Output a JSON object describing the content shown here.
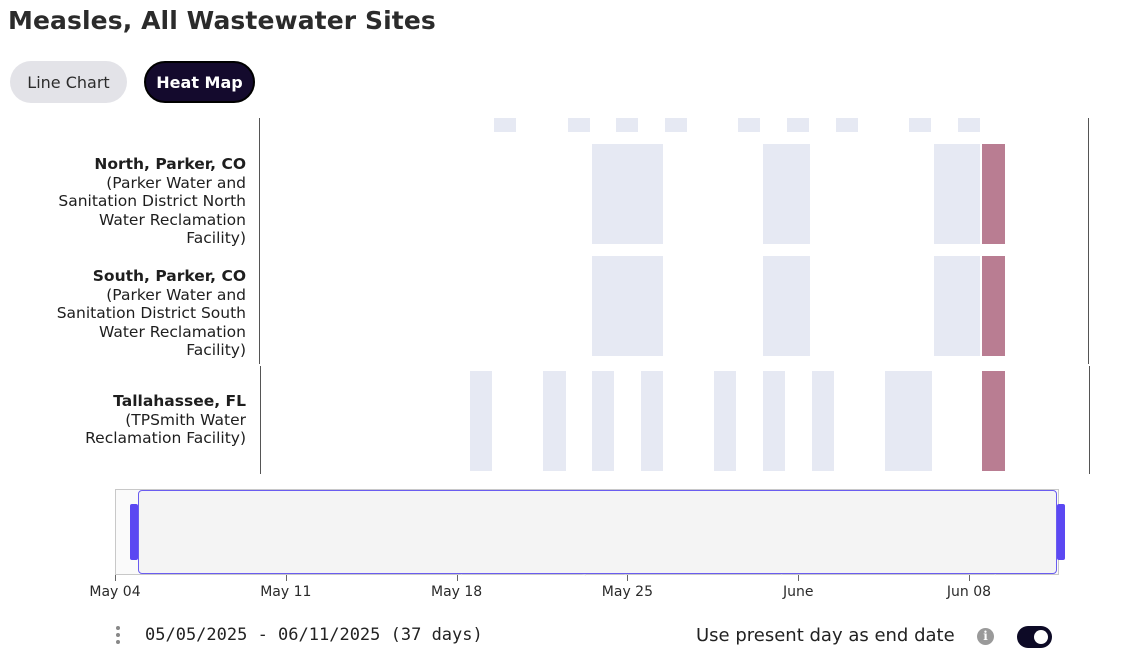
{
  "page": {
    "title": "Measles, All Wastewater Sites"
  },
  "view_toggle": {
    "line_chart_label": "Line Chart",
    "heat_map_label": "Heat Map",
    "active": "Heat Map"
  },
  "colors": {
    "no_detection": "#e6e9f3",
    "detection": "#b97d92",
    "accent": "#5b48f2",
    "active_button": "#140a2d"
  },
  "chart_data": {
    "type": "heatmap",
    "title": "Measles, All Wastewater Sites",
    "x_axis": {
      "type": "date",
      "range": [
        "2025-05-04",
        "2025-06-12"
      ],
      "tick_labels": [
        "May 04",
        "May 11",
        "May 18",
        "May 25",
        "June",
        "Jun 08"
      ]
    },
    "legend": "none",
    "legend_dates": [
      "2025-05-20",
      "2025-05-23",
      "2025-05-25",
      "2025-05-27",
      "2025-05-30",
      "2025-06-01",
      "2025-06-03",
      "2025-06-06",
      "2025-06-08"
    ],
    "rows": [
      {
        "site": "North, Parker, CO",
        "facility": "(Parker Water and Sanitation District North Water Reclamation Facility)",
        "samples": [
          {
            "start": "2025-05-24",
            "end": "2025-05-26",
            "status": "not detected"
          },
          {
            "start": "2025-05-31",
            "end": "2025-06-01",
            "status": "not detected"
          },
          {
            "start": "2025-06-07",
            "end": "2025-06-08",
            "status": "not detected"
          },
          {
            "start": "2025-06-09",
            "end": "2025-06-09",
            "status": "detected"
          }
        ]
      },
      {
        "site": "South, Parker, CO",
        "facility": "(Parker Water and Sanitation District South Water Reclamation Facility)",
        "samples": [
          {
            "start": "2025-05-24",
            "end": "2025-05-26",
            "status": "not detected"
          },
          {
            "start": "2025-05-31",
            "end": "2025-06-01",
            "status": "not detected"
          },
          {
            "start": "2025-06-07",
            "end": "2025-06-08",
            "status": "not detected"
          },
          {
            "start": "2025-06-09",
            "end": "2025-06-09",
            "status": "detected"
          }
        ]
      },
      {
        "site": "Tallahassee, FL",
        "facility": "(TPSmith Water Reclamation Facility)",
        "samples": [
          {
            "start": "2025-05-19",
            "end": "2025-05-19",
            "status": "not detected"
          },
          {
            "start": "2025-05-22",
            "end": "2025-05-22",
            "status": "not detected"
          },
          {
            "start": "2025-05-24",
            "end": "2025-05-24",
            "status": "not detected"
          },
          {
            "start": "2025-05-26",
            "end": "2025-05-26",
            "status": "not detected"
          },
          {
            "start": "2025-05-29",
            "end": "2025-05-29",
            "status": "not detected"
          },
          {
            "start": "2025-05-31",
            "end": "2025-05-31",
            "status": "not detected"
          },
          {
            "start": "2025-06-02",
            "end": "2025-06-02",
            "status": "not detected"
          },
          {
            "start": "2025-06-05",
            "end": "2025-06-06",
            "status": "not detected"
          },
          {
            "start": "2025-06-09",
            "end": "2025-06-09",
            "status": "detected"
          }
        ]
      }
    ],
    "brush": {
      "selection_start": "2025-05-05",
      "selection_end": "2025-06-11"
    }
  },
  "footer": {
    "date_range": "05/05/2025 - 06/11/2025 (37 days)",
    "present_day_label": "Use present day as end date",
    "present_day_enabled": true
  }
}
